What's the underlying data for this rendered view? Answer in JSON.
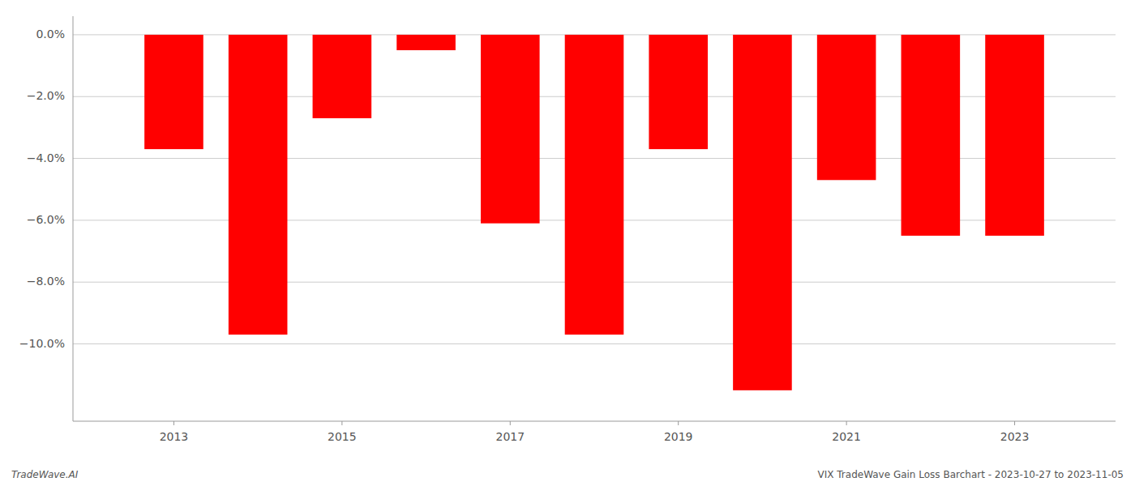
{
  "chart_data": {
    "type": "bar",
    "x": [
      2013,
      2014,
      2015,
      2016,
      2017,
      2018,
      2019,
      2020,
      2021,
      2022,
      2023
    ],
    "values": [
      -3.7,
      -9.7,
      -2.7,
      -0.5,
      -6.1,
      -9.7,
      -3.7,
      -11.5,
      -4.7,
      -6.5,
      -6.5
    ],
    "color": "#ff0000",
    "xlim": [
      2011.8,
      2024.2
    ],
    "xticks": [
      2013,
      2015,
      2017,
      2019,
      2021,
      2023
    ],
    "ylim": [
      -12.5,
      0.6
    ],
    "yticks": [
      {
        "value": 0.0,
        "label": "0.0%"
      },
      {
        "value": -2.0,
        "label": "−2.0%"
      },
      {
        "value": -4.0,
        "label": "−4.0%"
      },
      {
        "value": -6.0,
        "label": "−6.0%"
      },
      {
        "value": -8.0,
        "label": "−8.0%"
      },
      {
        "value": -10.0,
        "label": "−10.0%"
      }
    ],
    "grid": true,
    "annotations": [
      "TradeWave.AI",
      "VIX TradeWave Gain Loss Barchart - 2023-10-27 to 2023-11-05"
    ]
  }
}
